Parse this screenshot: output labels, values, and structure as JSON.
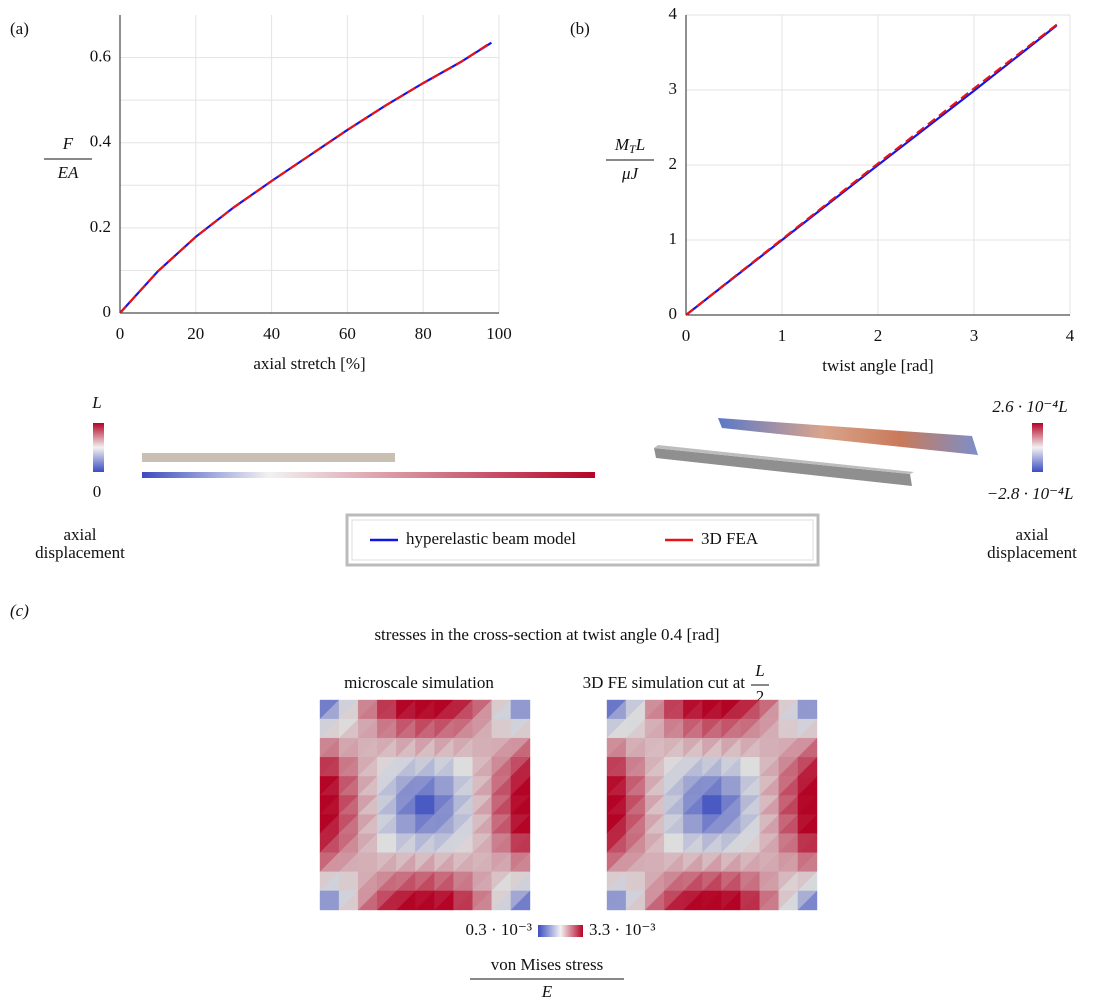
{
  "chart_data": [
    {
      "type": "line",
      "panel_label": "(a)",
      "xlabel": "axial stretch [%]",
      "ylabel": {
        "numerator": "F",
        "denominator": "EA"
      },
      "xlim": [
        0,
        100
      ],
      "ylim": [
        0,
        0.7
      ],
      "xticks": [
        0,
        20,
        40,
        60,
        80,
        100
      ],
      "yticks": [
        0,
        0.2,
        0.4,
        0.6
      ],
      "minor_yticks": [
        0.1,
        0.3,
        0.5
      ],
      "grid": true,
      "series": [
        {
          "name": "hyperelastic beam model",
          "color": "#1414e6",
          "linestyle": "solid",
          "x": [
            0,
            10,
            20,
            30,
            40,
            50,
            60,
            70,
            80,
            90,
            98
          ],
          "values": [
            0,
            0.098,
            0.179,
            0.248,
            0.31,
            0.37,
            0.43,
            0.487,
            0.54,
            0.59,
            0.635
          ]
        },
        {
          "name": "3D FEA",
          "color": "#e61414",
          "linestyle": "dashed",
          "x": [
            0,
            10,
            20,
            30,
            40,
            50,
            60,
            70,
            80,
            90,
            98
          ],
          "values": [
            0,
            0.098,
            0.179,
            0.248,
            0.31,
            0.37,
            0.43,
            0.487,
            0.54,
            0.59,
            0.636
          ]
        }
      ]
    },
    {
      "type": "line",
      "panel_label": "(b)",
      "xlabel": "twist angle [rad]",
      "ylabel": {
        "numerator": "M",
        "numerator_sub": "T",
        "numerator_tail": "L",
        "denominator": "μJ"
      },
      "xlim": [
        0,
        4
      ],
      "ylim": [
        0,
        4
      ],
      "xticks": [
        0,
        1,
        2,
        3,
        4
      ],
      "yticks": [
        0,
        1,
        2,
        3,
        4
      ],
      "grid": true,
      "series": [
        {
          "color": "#1414e6",
          "linestyle": "solid",
          "x": [
            0,
            1,
            2,
            3,
            3.86
          ],
          "values": [
            0,
            1,
            2,
            2.99,
            3.86
          ]
        },
        {
          "color": "#e61414",
          "linestyle": "dashed",
          "x": [
            0,
            1,
            2,
            3,
            3.88
          ],
          "values": [
            0,
            1.01,
            2.02,
            3.02,
            3.89
          ]
        }
      ]
    }
  ],
  "displacement": {
    "left": {
      "top": "L",
      "bottom": "0",
      "caption": [
        "axial",
        "displacement"
      ]
    },
    "right": {
      "top": "2.6 · 10⁻⁴L",
      "bottom": "−2.8 · 10⁻⁴L",
      "caption": [
        "axial",
        "displacement"
      ]
    }
  },
  "panel_c": {
    "label": "(c)",
    "title": "stresses in the cross-section at twist angle 0.4 [rad]",
    "left_title": "microscale simulation",
    "right_title": "3D FE simulation cut at",
    "right_title_fraction": {
      "numerator": "L",
      "denominator": "2"
    },
    "colorbar": {
      "min": "0.3 · 10⁻³",
      "max": "3.3 · 10⁻³",
      "numerator": "von Mises stress",
      "denominator": "E"
    }
  }
}
